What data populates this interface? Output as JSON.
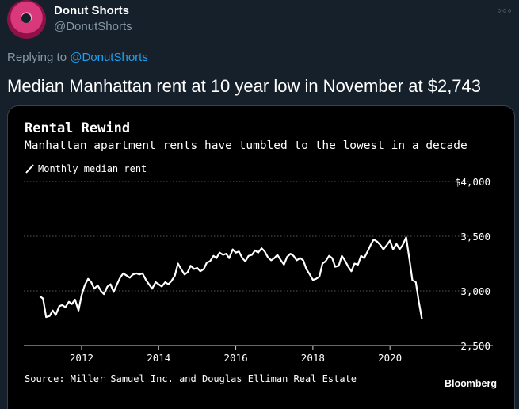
{
  "tweet": {
    "author_name": "Donut Shorts",
    "author_handle": "@DonutShorts",
    "more_icon": "ellipsis-icon",
    "replying_prefix": "Replying to",
    "replying_handle": "@DonutShorts",
    "text": "Median Manhattan rent at 10 year low in November at $2,743"
  },
  "card": {
    "brand": "Bloomberg",
    "source": "Source: Miller Samuel Inc. and Douglas Elliman Real Estate"
  },
  "chart_data": {
    "type": "line",
    "title": "Rental Rewind",
    "subtitle": "Manhattan apartment rents have tumbled to the lowest in a decade",
    "legend": "Monthly median rent",
    "xlabel": "",
    "ylabel": "",
    "xlim": [
      2010.5,
      2021.6
    ],
    "ylim": [
      2500,
      4000
    ],
    "x_ticks": [
      2012,
      2014,
      2016,
      2018,
      2020
    ],
    "x_tick_labels": [
      "2012",
      "2014",
      "2016",
      "2018",
      "2020"
    ],
    "y_ticks": [
      2500,
      3000,
      3500,
      4000
    ],
    "y_tick_labels": [
      "2,500",
      "3,000",
      "3,500",
      "$4,000"
    ],
    "grid": true,
    "line_color": "#ffffff",
    "series": [
      {
        "name": "Monthly median rent",
        "points": [
          [
            2010.92,
            2950
          ],
          [
            2011.0,
            2930
          ],
          [
            2011.08,
            2760
          ],
          [
            2011.17,
            2770
          ],
          [
            2011.25,
            2820
          ],
          [
            2011.33,
            2780
          ],
          [
            2011.42,
            2860
          ],
          [
            2011.5,
            2870
          ],
          [
            2011.58,
            2850
          ],
          [
            2011.67,
            2900
          ],
          [
            2011.75,
            2880
          ],
          [
            2011.83,
            2920
          ],
          [
            2011.92,
            2820
          ],
          [
            2012.0,
            2960
          ],
          [
            2012.08,
            3050
          ],
          [
            2012.17,
            3110
          ],
          [
            2012.25,
            3080
          ],
          [
            2012.33,
            3020
          ],
          [
            2012.42,
            3050
          ],
          [
            2012.5,
            3000
          ],
          [
            2012.58,
            2970
          ],
          [
            2012.67,
            3040
          ],
          [
            2012.75,
            3060
          ],
          [
            2012.83,
            2990
          ],
          [
            2012.92,
            3060
          ],
          [
            2013.0,
            3120
          ],
          [
            2013.08,
            3160
          ],
          [
            2013.17,
            3140
          ],
          [
            2013.25,
            3120
          ],
          [
            2013.33,
            3150
          ],
          [
            2013.42,
            3160
          ],
          [
            2013.5,
            3150
          ],
          [
            2013.58,
            3160
          ],
          [
            2013.67,
            3100
          ],
          [
            2013.75,
            3060
          ],
          [
            2013.83,
            3020
          ],
          [
            2013.92,
            3080
          ],
          [
            2014.0,
            3060
          ],
          [
            2014.08,
            3040
          ],
          [
            2014.17,
            3080
          ],
          [
            2014.25,
            3060
          ],
          [
            2014.33,
            3090
          ],
          [
            2014.42,
            3140
          ],
          [
            2014.5,
            3250
          ],
          [
            2014.58,
            3200
          ],
          [
            2014.67,
            3150
          ],
          [
            2014.75,
            3170
          ],
          [
            2014.83,
            3230
          ],
          [
            2014.92,
            3200
          ],
          [
            2015.0,
            3210
          ],
          [
            2015.08,
            3180
          ],
          [
            2015.17,
            3200
          ],
          [
            2015.25,
            3260
          ],
          [
            2015.33,
            3270
          ],
          [
            2015.42,
            3320
          ],
          [
            2015.5,
            3300
          ],
          [
            2015.58,
            3350
          ],
          [
            2015.67,
            3330
          ],
          [
            2015.75,
            3340
          ],
          [
            2015.83,
            3300
          ],
          [
            2015.92,
            3380
          ],
          [
            2016.0,
            3350
          ],
          [
            2016.08,
            3360
          ],
          [
            2016.17,
            3300
          ],
          [
            2016.25,
            3270
          ],
          [
            2016.33,
            3320
          ],
          [
            2016.42,
            3330
          ],
          [
            2016.5,
            3370
          ],
          [
            2016.58,
            3350
          ],
          [
            2016.67,
            3390
          ],
          [
            2016.75,
            3360
          ],
          [
            2016.83,
            3310
          ],
          [
            2016.92,
            3280
          ],
          [
            2017.0,
            3300
          ],
          [
            2017.08,
            3330
          ],
          [
            2017.17,
            3280
          ],
          [
            2017.25,
            3240
          ],
          [
            2017.33,
            3310
          ],
          [
            2017.42,
            3340
          ],
          [
            2017.5,
            3320
          ],
          [
            2017.58,
            3280
          ],
          [
            2017.67,
            3300
          ],
          [
            2017.75,
            3280
          ],
          [
            2017.83,
            3200
          ],
          [
            2017.92,
            3150
          ],
          [
            2018.0,
            3100
          ],
          [
            2018.08,
            3110
          ],
          [
            2018.17,
            3130
          ],
          [
            2018.25,
            3250
          ],
          [
            2018.33,
            3270
          ],
          [
            2018.42,
            3320
          ],
          [
            2018.5,
            3300
          ],
          [
            2018.58,
            3220
          ],
          [
            2018.67,
            3230
          ],
          [
            2018.75,
            3320
          ],
          [
            2018.83,
            3280
          ],
          [
            2018.92,
            3220
          ],
          [
            2019.0,
            3180
          ],
          [
            2019.08,
            3250
          ],
          [
            2019.17,
            3240
          ],
          [
            2019.25,
            3320
          ],
          [
            2019.33,
            3300
          ],
          [
            2019.42,
            3360
          ],
          [
            2019.5,
            3420
          ],
          [
            2019.58,
            3470
          ],
          [
            2019.67,
            3450
          ],
          [
            2019.75,
            3420
          ],
          [
            2019.83,
            3380
          ],
          [
            2019.92,
            3420
          ],
          [
            2020.0,
            3460
          ],
          [
            2020.08,
            3380
          ],
          [
            2020.17,
            3430
          ],
          [
            2020.25,
            3380
          ],
          [
            2020.33,
            3420
          ],
          [
            2020.42,
            3490
          ],
          [
            2020.5,
            3300
          ],
          [
            2020.58,
            3100
          ],
          [
            2020.67,
            3080
          ],
          [
            2020.75,
            2900
          ],
          [
            2020.83,
            2743
          ]
        ]
      }
    ]
  }
}
